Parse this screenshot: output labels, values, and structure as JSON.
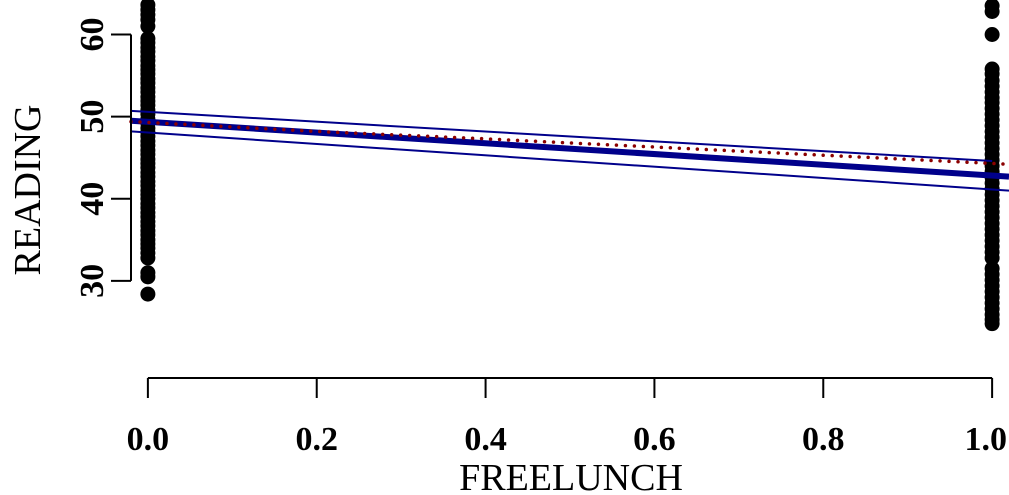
{
  "chart_data": {
    "type": "scatter",
    "title": "",
    "xlabel": "FREELUNCH",
    "ylabel": "READING",
    "xlim": [
      -0.02,
      1.02
    ],
    "ylim": [
      22.2,
      64.2
    ],
    "x_ticks": [
      {
        "value": 0.0,
        "label": "0.0"
      },
      {
        "value": 0.2,
        "label": "0.2"
      },
      {
        "value": 0.4,
        "label": "0.4"
      },
      {
        "value": 0.6,
        "label": "0.6"
      },
      {
        "value": 0.8,
        "label": "0.8"
      },
      {
        "value": 1.0,
        "label": "1.0"
      }
    ],
    "y_ticks": [
      {
        "value": 30,
        "label": "30"
      },
      {
        "value": 40,
        "label": "40"
      },
      {
        "value": 50,
        "label": "50"
      },
      {
        "value": 60,
        "label": "60"
      }
    ],
    "grid": false,
    "legend": "none",
    "points": {
      "color": "#000000",
      "groups": [
        {
          "x": 0,
          "y": [
            63.6,
            63.0,
            62.4,
            61.8,
            61.0,
            59.5,
            59.0,
            58.4,
            57.9,
            57.3,
            56.8,
            56.2,
            55.7,
            55.2,
            54.6,
            54.1,
            53.5,
            53.0,
            52.4,
            51.9,
            51.4,
            50.8,
            50.3,
            49.7,
            49.2,
            48.6,
            48.1,
            47.6,
            47.0,
            46.5,
            45.9,
            45.4,
            44.8,
            44.3,
            43.8,
            43.2,
            42.7,
            42.1,
            41.6,
            41.0,
            40.5,
            40.0,
            39.4,
            38.9,
            38.3,
            37.8,
            37.2,
            36.7,
            36.1,
            35.6,
            35.0,
            34.5,
            34.0,
            33.4,
            32.8,
            31.0,
            30.5,
            28.4
          ]
        },
        {
          "x": 1,
          "y": [
            63.5,
            62.8,
            60.0,
            55.8,
            55.2,
            54.4,
            53.7,
            53.0,
            52.3,
            51.7,
            51.0,
            50.3,
            49.6,
            48.9,
            48.2,
            47.5,
            46.8,
            46.1,
            45.4,
            44.7,
            44.0,
            43.3,
            42.6,
            41.9,
            41.2,
            40.5,
            39.8,
            39.1,
            38.4,
            37.7,
            37.0,
            36.3,
            35.6,
            34.9,
            34.2,
            33.5,
            32.8,
            31.5,
            30.8,
            30.1,
            29.4,
            28.7,
            28.0,
            27.3,
            26.6,
            25.9,
            25.3,
            24.8
          ]
        }
      ]
    },
    "lines": [
      {
        "kind": "fit",
        "style": "solid",
        "color": "#00008b",
        "x": [
          -0.02,
          1.02
        ],
        "y": [
          49.5,
          42.7
        ]
      },
      {
        "kind": "upper-band",
        "style": "solid",
        "color": "#00008b",
        "x": [
          -0.02,
          1.0
        ],
        "y": [
          50.7,
          44.6
        ]
      },
      {
        "kind": "lower-band",
        "style": "solid",
        "color": "#00008b",
        "x": [
          -0.02,
          1.02
        ],
        "y": [
          48.2,
          41.0
        ]
      },
      {
        "kind": "smooth",
        "style": "dotted",
        "color": "#8b0000",
        "x": [
          -0.02,
          0.2,
          0.4,
          0.6,
          0.8,
          1.02
        ],
        "y": [
          49.4,
          48.2,
          47.3,
          46.3,
          45.3,
          44.2
        ]
      }
    ]
  }
}
